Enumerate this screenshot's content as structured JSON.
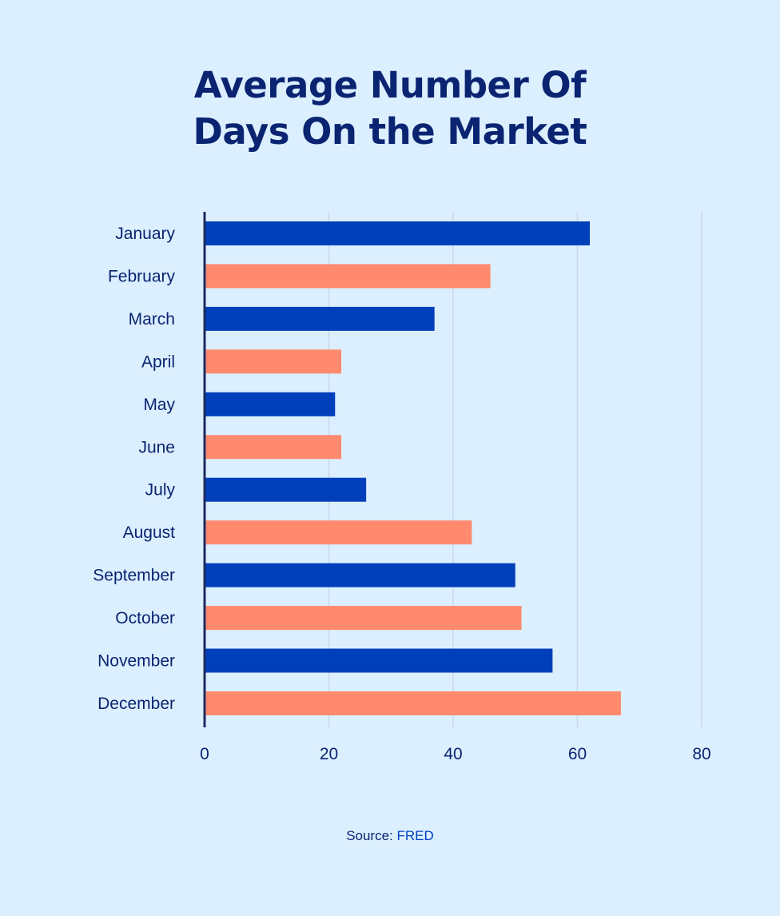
{
  "title_lines": [
    "Average Number Of",
    "Days On the Market"
  ],
  "source": {
    "label": "Source:",
    "link_text": "FRED"
  },
  "colors": {
    "background": "#dcefff",
    "title": "#0a2472",
    "blue_bar": "#003fba",
    "salmon_bar": "#ff8a6e",
    "gridline": "#c8d9ec",
    "axis": "#1d2b5e",
    "label": "#0a2472"
  },
  "chart_data": {
    "type": "bar",
    "orientation": "horizontal",
    "title": "Average Number Of Days On the Market",
    "categories": [
      "January",
      "February",
      "March",
      "April",
      "May",
      "June",
      "July",
      "August",
      "September",
      "October",
      "November",
      "December"
    ],
    "values": [
      62,
      46,
      37,
      22,
      21,
      22,
      26,
      43,
      50,
      51,
      56,
      67
    ],
    "bar_colors": [
      "#003fba",
      "#ff8a6e",
      "#003fba",
      "#ff8a6e",
      "#003fba",
      "#ff8a6e",
      "#003fba",
      "#ff8a6e",
      "#003fba",
      "#ff8a6e",
      "#003fba",
      "#ff8a6e"
    ],
    "xlim": [
      0,
      80
    ],
    "xticks": [
      0,
      20,
      40,
      60,
      80
    ],
    "xlabel": "",
    "ylabel": "",
    "grid": true,
    "legend": "none"
  }
}
